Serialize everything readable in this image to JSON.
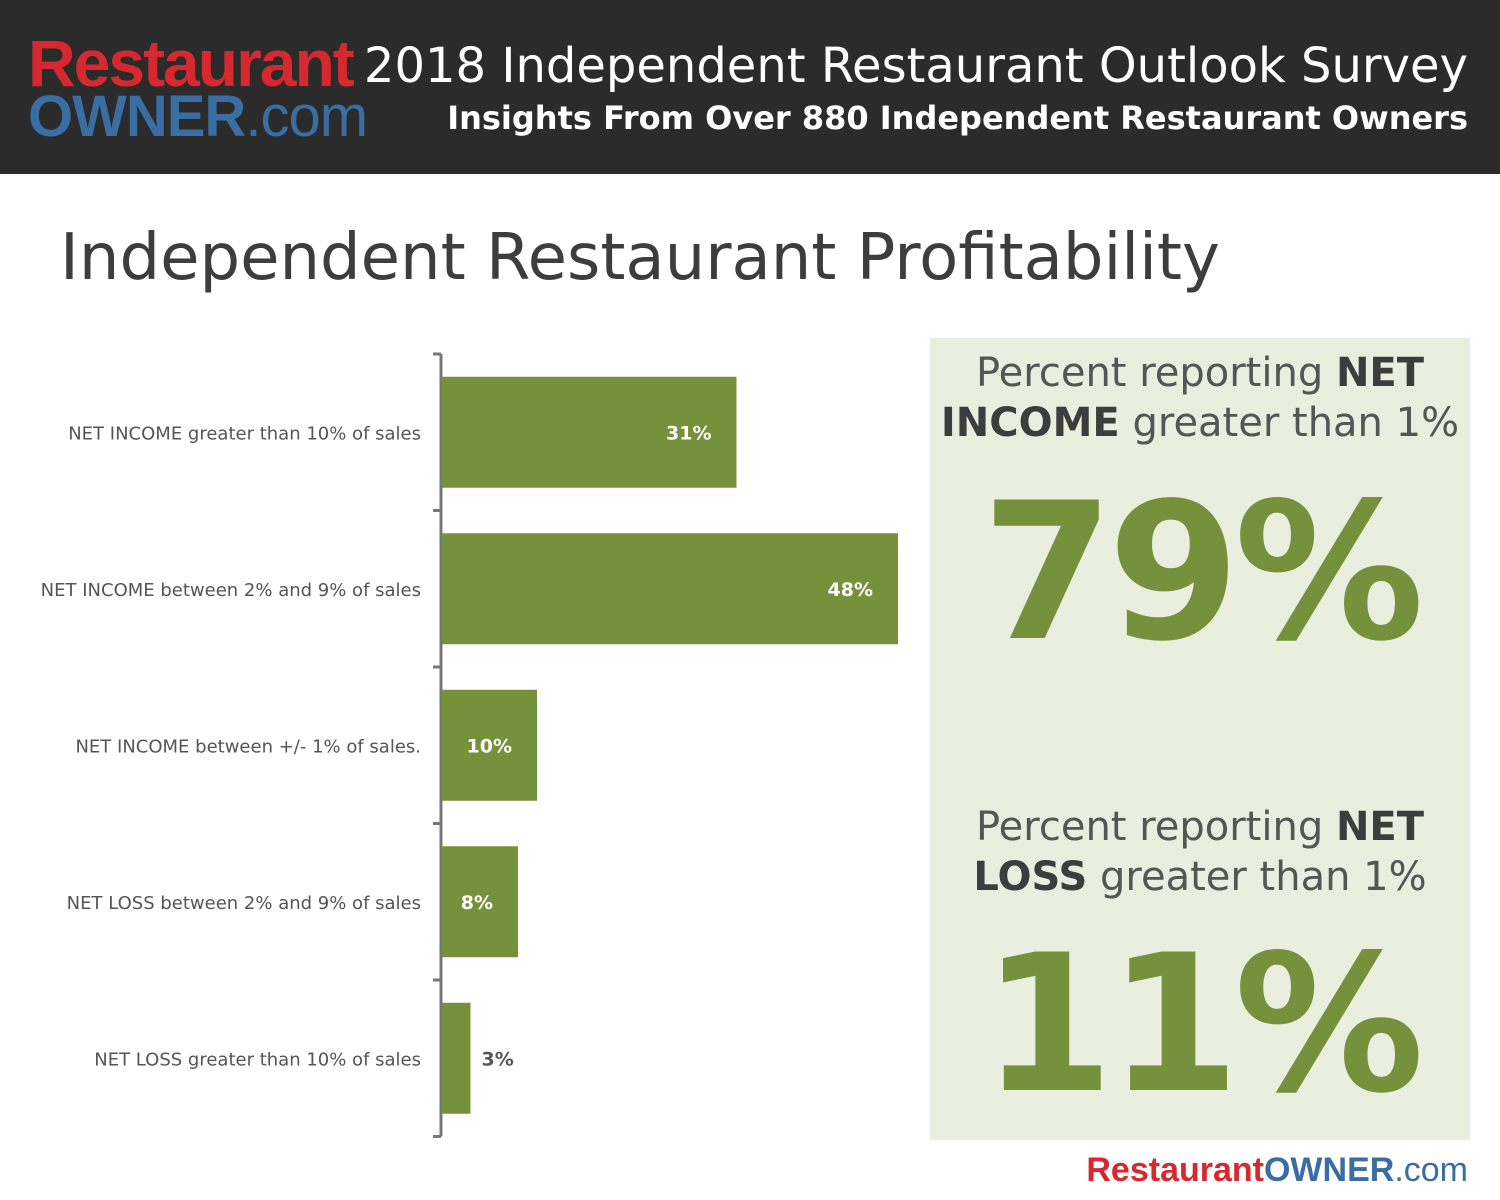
{
  "header": {
    "logo_top": "Restaurant",
    "logo_bottom_strong": "OWNER",
    "logo_bottom_suffix": ".com",
    "title": "2018 Independent Restaurant Outlook Survey",
    "subtitle": "Insights From Over 880 Independent Restaurant Owners"
  },
  "page_title": "Independent Restaurant Profitability",
  "colors": {
    "bar": "#76913c",
    "panel_bg": "#e9eedf",
    "header_bg": "#2b2b2b",
    "logo_red": "#d7282f",
    "logo_blue": "#3a6da2"
  },
  "chart_data": {
    "type": "bar",
    "orientation": "horizontal",
    "categories": [
      "NET INCOME greater than 10% of sales",
      "NET INCOME between 2% and 9% of sales",
      "NET INCOME between +/- 1% of sales.",
      "NET LOSS between 2% and 9% of sales",
      "NET LOSS greater than 10% of sales"
    ],
    "values": [
      31,
      48,
      10,
      8,
      3
    ],
    "labels": [
      "31%",
      "48%",
      "10%",
      "8%",
      "3%"
    ],
    "title": "",
    "xlabel": "",
    "ylabel": "",
    "xlim": [
      0,
      48
    ],
    "grid": false,
    "legend": "none"
  },
  "callouts": {
    "income": {
      "prefix": "Percent reporting ",
      "strong_1": "NET",
      "strong_2": "INCOME",
      "suffix": " greater than 1%",
      "value": "79%"
    },
    "loss": {
      "prefix": "Percent reporting ",
      "strong_1": "NET",
      "strong_2": "LOSS",
      "suffix": " greater than 1%",
      "value": "11%"
    }
  },
  "footer": {
    "logo_red": "Restaurant",
    "logo_blue": "OWNER",
    "logo_suffix": ".com"
  }
}
